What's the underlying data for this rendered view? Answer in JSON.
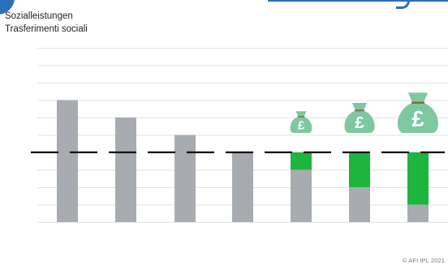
{
  "header": {
    "title_line1": "Sozialleistungen",
    "title_line2": "Trasferimenti sociali"
  },
  "footer": {
    "copyright": "© AFI IPL 2021"
  },
  "colors": {
    "bar_gray": "#a8acb1",
    "bar_green": "#1db53c",
    "bag_green": "#7dc8a1",
    "bag_tie": "#8a6a3c",
    "gridline": "#e3e3e3",
    "dashed_line": "#111111",
    "brand_blue": "#2f6fb4",
    "text": "#222222"
  },
  "icons": [
    "money-bag-pound-icon"
  ],
  "chart_data": {
    "type": "bar",
    "title": "Sozialleistungen / Trasferimenti sociali",
    "xlabel": "",
    "ylabel": "",
    "ylim": [
      -4,
      6
    ],
    "grid": true,
    "baseline": 0,
    "series": [
      {
        "values": [
          3,
          2,
          1,
          0,
          0,
          0,
          0
        ]
      },
      {
        "values": [
          -4,
          -4,
          -4,
          -4,
          -1,
          -2,
          -3
        ]
      }
    ],
    "bag_levels": [
      0,
      0,
      0,
      0,
      1,
      2,
      3
    ]
  }
}
